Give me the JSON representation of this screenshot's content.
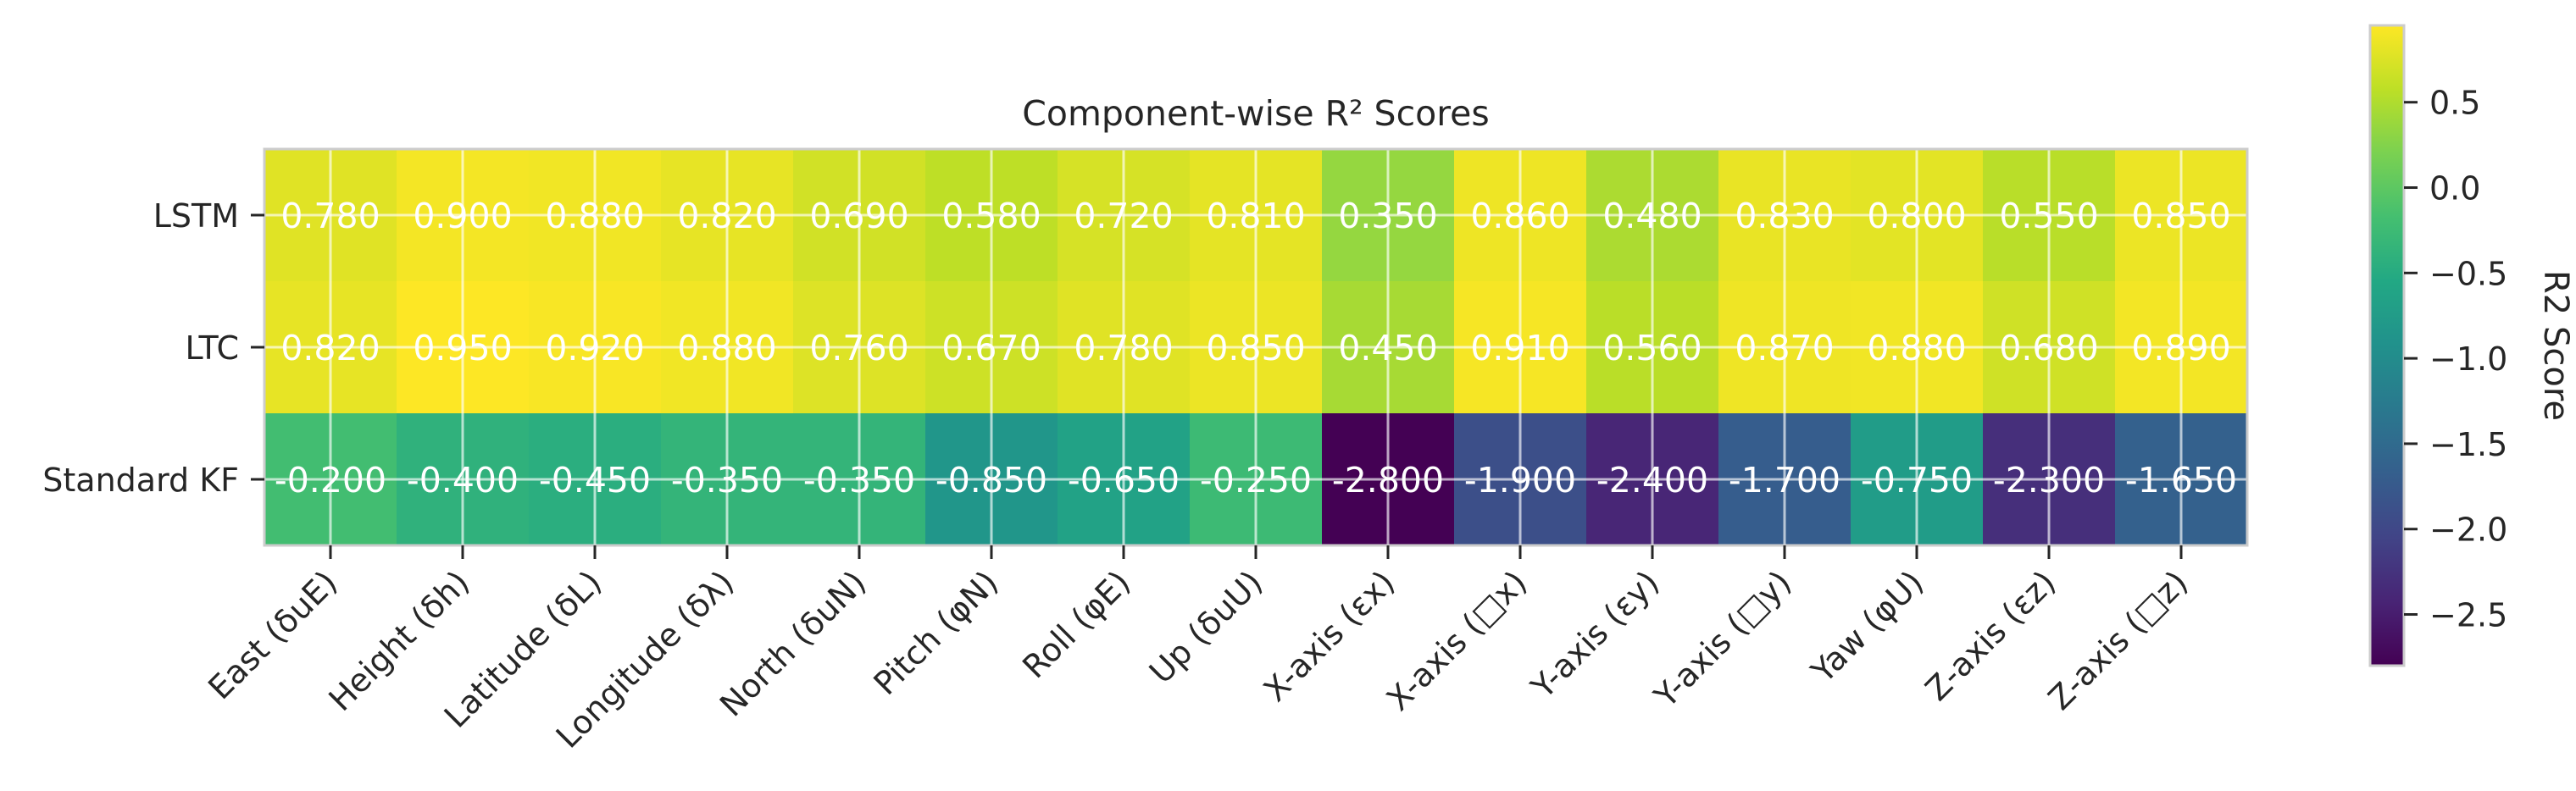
{
  "chart_data": {
    "type": "heatmap",
    "title": "Component-wise R² Scores",
    "rows": [
      "LSTM",
      "LTC",
      "Standard KF"
    ],
    "columns": [
      "East (δuE)",
      "Height (δh)",
      "Latitude (δL)",
      "Longitude (δλ)",
      "North (δuN)",
      "Pitch (φN)",
      "Roll (φE)",
      "Up (δuU)",
      "X-axis (εx)",
      "X-axis (□x)",
      "Y-axis (εy)",
      "Y-axis (□y)",
      "Yaw (φU)",
      "Z-axis (εz)",
      "Z-axis (□z)"
    ],
    "values": [
      [
        0.78,
        0.9,
        0.88,
        0.82,
        0.69,
        0.58,
        0.72,
        0.81,
        0.35,
        0.86,
        0.48,
        0.83,
        0.8,
        0.55,
        0.85
      ],
      [
        0.82,
        0.95,
        0.92,
        0.88,
        0.76,
        0.67,
        0.78,
        0.85,
        0.45,
        0.91,
        0.56,
        0.87,
        0.88,
        0.68,
        0.89
      ],
      [
        -0.2,
        -0.4,
        -0.45,
        -0.35,
        -0.35,
        -0.85,
        -0.65,
        -0.25,
        -2.8,
        -1.9,
        -2.4,
        -1.7,
        -0.75,
        -2.3,
        -1.65
      ]
    ],
    "cell_labels": [
      [
        "0.780",
        "0.900",
        "0.880",
        "0.820",
        "0.690",
        "0.580",
        "0.720",
        "0.810",
        "0.350",
        "0.860",
        "0.480",
        "0.830",
        "0.800",
        "0.550",
        "0.850"
      ],
      [
        "0.820",
        "0.950",
        "0.920",
        "0.880",
        "0.760",
        "0.670",
        "0.780",
        "0.850",
        "0.450",
        "0.910",
        "0.560",
        "0.870",
        "0.880",
        "0.680",
        "0.890"
      ],
      [
        "-0.200",
        "-0.400",
        "-0.450",
        "-0.350",
        "-0.350",
        "-0.850",
        "-0.650",
        "-0.250",
        "-2.800",
        "-1.900",
        "-2.400",
        "-1.700",
        "-0.750",
        "-2.300",
        "-1.650"
      ]
    ],
    "colormap": "viridis",
    "vmin": -2.8,
    "vmax": 0.95,
    "colorbar": {
      "label": "R2 Score",
      "ticks": [
        0.5,
        0.0,
        -0.5,
        -1.0,
        -1.5,
        -2.0,
        -2.5
      ],
      "tick_labels": [
        "0.5",
        "0.0",
        "−0.5",
        "−1.0",
        "−1.5",
        "−2.0",
        "−2.5"
      ]
    },
    "grid": true
  }
}
